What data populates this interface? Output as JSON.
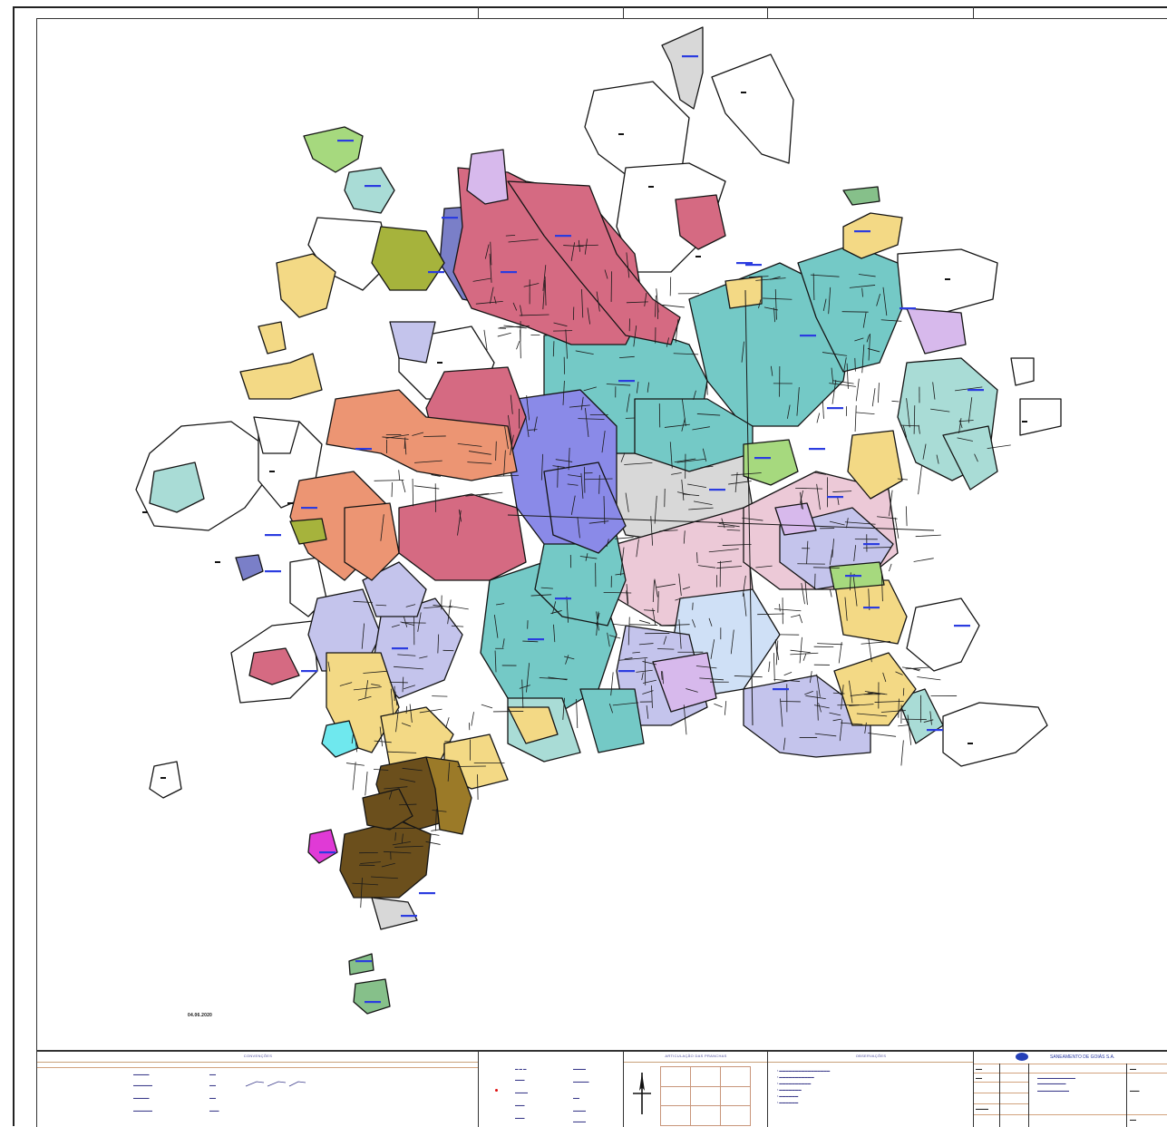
{
  "map": {
    "stamp": "04.06.2020",
    "palette": {
      "pink": "#d56a82",
      "blue_violet": "#8a8ae8",
      "dark_blue": "#7a7fc8",
      "teal": "#74c9c6",
      "light_teal": "#a9dcd6",
      "lavender": "#c4c4ec",
      "light_blue": "#cfe0f6",
      "light_pink": "#ecc9d7",
      "salmon": "#ec9573",
      "olive": "#a6b33c",
      "yellow": "#f3d985",
      "brown": "#6b4f1c",
      "gold_brown": "#9b7a28",
      "grey": "#d8d8d8",
      "green": "#a6d97e",
      "cyan": "#6fe8ee",
      "magenta": "#e03ad6",
      "light_purple": "#d7b9ec",
      "sage": "#86c08a"
    },
    "labels": [
      "■",
      "■",
      "■"
    ]
  },
  "legend": {
    "convencoes_title": "CONVENÇÕES",
    "articulacao_title": "ARTICULAÇÃO DAS PRANCHAS",
    "observacoes_title": "OBSERVAÇÕES",
    "company_name": "SANEAMENTO DE GOIÁS S.A.",
    "north_icon": "north-arrow-icon"
  }
}
